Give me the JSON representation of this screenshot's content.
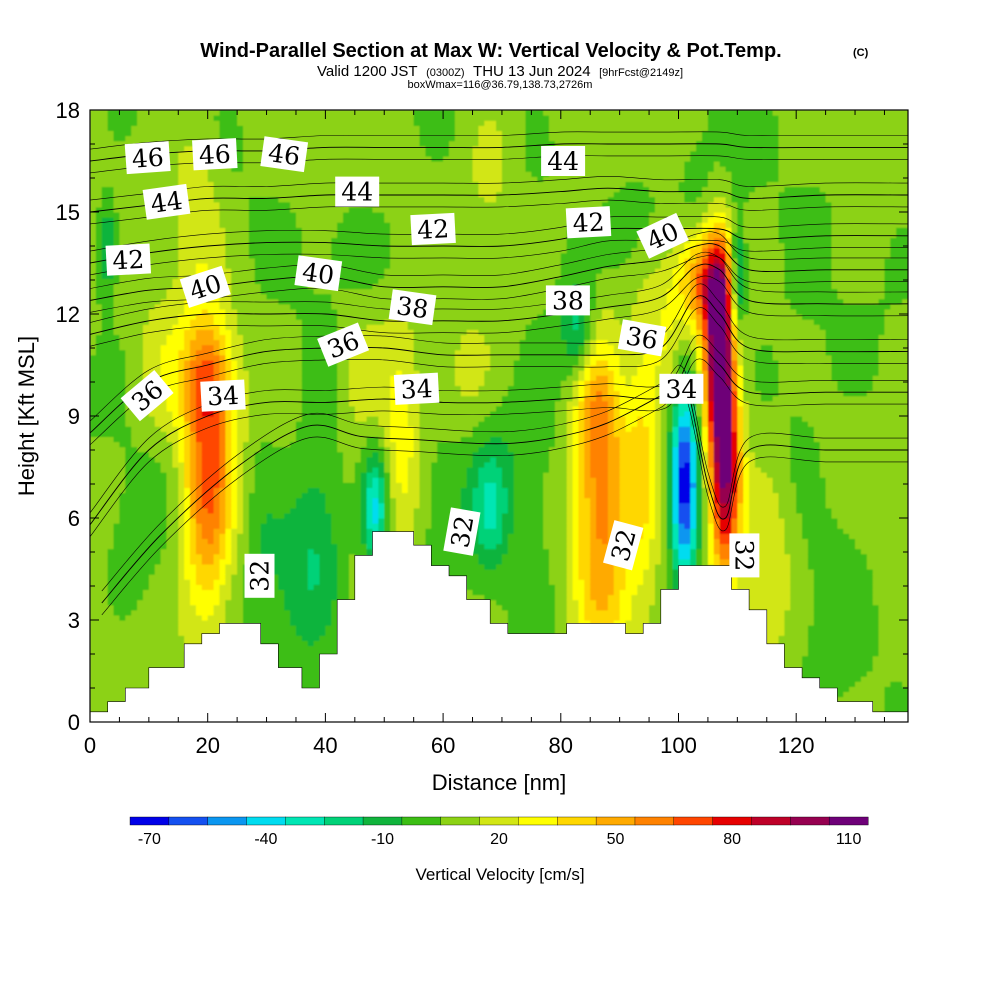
{
  "title": {
    "main": "Wind-Parallel Section at Max W: Vertical Velocity & Pot.Temp.",
    "copyright": "(C)",
    "valid_prefix": "Valid 1200 JST",
    "valid_z": "(0300Z)",
    "valid_date": "THU 13 Jun 2024",
    "forecast": "[9hrFcst@2149z]",
    "box": "boxWmax=116@36.79,138.73,2726m"
  },
  "colors": {
    "scale": [
      "#0000e8",
      "#1450f0",
      "#0a96f0",
      "#00dcf0",
      "#00e6b4",
      "#00d278",
      "#10b43c",
      "#3cbe14",
      "#8cd214",
      "#d2e614",
      "#ffff00",
      "#ffd700",
      "#ffaa00",
      "#ff8200",
      "#ff4600",
      "#e60000",
      "#be0028",
      "#960050",
      "#6e0078"
    ],
    "terrain": "#ffffff",
    "contour": "#000000"
  },
  "chart_data": {
    "type": "heatmap",
    "title": "Wind-Parallel Section at Max W: Vertical Velocity & Pot.Temp.",
    "xlabel": "Distance [nm]",
    "ylabel": "Height [Kft MSL]",
    "xlim": [
      0,
      139
    ],
    "ylim": [
      0,
      18
    ],
    "xticks": [
      0,
      20,
      40,
      60,
      80,
      100,
      120
    ],
    "yticks": [
      0,
      3,
      6,
      9,
      12,
      15,
      18
    ],
    "colorbar": {
      "title": "Vertical Velocity [cm/s]",
      "tick_labels": [
        "-70",
        "-40",
        "-10",
        "20",
        "50",
        "80",
        "110"
      ],
      "tick_values": [
        -70,
        -40,
        -10,
        20,
        50,
        80,
        110
      ],
      "min": -75,
      "max": 115
    },
    "terrain_profile": [
      [
        0,
        0.3
      ],
      [
        3,
        0.3
      ],
      [
        3,
        0.6
      ],
      [
        6,
        0.6
      ],
      [
        6,
        1.0
      ],
      [
        10,
        1.0
      ],
      [
        10,
        1.6
      ],
      [
        16,
        1.6
      ],
      [
        16,
        2.3
      ],
      [
        19,
        2.3
      ],
      [
        19,
        2.6
      ],
      [
        22,
        2.6
      ],
      [
        22,
        2.9
      ],
      [
        29,
        2.9
      ],
      [
        29,
        2.3
      ],
      [
        32,
        2.3
      ],
      [
        32,
        1.6
      ],
      [
        36,
        1.6
      ],
      [
        36,
        1.0
      ],
      [
        39,
        1.0
      ],
      [
        39,
        2.0
      ],
      [
        42,
        2.0
      ],
      [
        42,
        3.6
      ],
      [
        45,
        3.6
      ],
      [
        45,
        4.9
      ],
      [
        48,
        4.9
      ],
      [
        48,
        5.6
      ],
      [
        55,
        5.6
      ],
      [
        55,
        5.2
      ],
      [
        58,
        5.2
      ],
      [
        58,
        4.6
      ],
      [
        61,
        4.6
      ],
      [
        61,
        4.3
      ],
      [
        64,
        4.3
      ],
      [
        64,
        3.6
      ],
      [
        68,
        3.6
      ],
      [
        68,
        2.9
      ],
      [
        71,
        2.9
      ],
      [
        71,
        2.6
      ],
      [
        81,
        2.6
      ],
      [
        81,
        2.9
      ],
      [
        91,
        2.9
      ],
      [
        91,
        2.6
      ],
      [
        94,
        2.6
      ],
      [
        94,
        2.9
      ],
      [
        97,
        2.9
      ],
      [
        97,
        3.9
      ],
      [
        100,
        3.9
      ],
      [
        100,
        4.6
      ],
      [
        109,
        4.6
      ],
      [
        109,
        3.9
      ],
      [
        112,
        3.9
      ],
      [
        112,
        3.3
      ],
      [
        115,
        3.3
      ],
      [
        115,
        2.3
      ],
      [
        118,
        2.3
      ],
      [
        118,
        1.6
      ],
      [
        121,
        1.6
      ],
      [
        121,
        1.3
      ],
      [
        124,
        1.3
      ],
      [
        124,
        1.0
      ],
      [
        127,
        1.0
      ],
      [
        127,
        0.6
      ],
      [
        133,
        0.6
      ],
      [
        133,
        0.3
      ],
      [
        139,
        0.3
      ]
    ],
    "vertical_velocity_cells": [
      {
        "x": 20,
        "y": 7,
        "sx": 3,
        "sy": 2.8,
        "w": 60
      },
      {
        "x": 20,
        "y": 10.2,
        "sx": 3,
        "sy": 1.2,
        "w": 32
      },
      {
        "x": 8,
        "y": 5.8,
        "sx": 4,
        "sy": 2,
        "w": -6
      },
      {
        "x": 29,
        "y": 5.5,
        "sx": 2,
        "sy": 2.5,
        "w": -8
      },
      {
        "x": 35,
        "y": 4.5,
        "sx": 4,
        "sy": 1.8,
        "w": -18
      },
      {
        "x": 39.5,
        "y": 6,
        "sx": 3,
        "sy": 2.5,
        "w": -15
      },
      {
        "x": 53,
        "y": 8,
        "sx": 2.5,
        "sy": 2.2,
        "w": 30
      },
      {
        "x": 48.5,
        "y": 6.2,
        "sx": 1.5,
        "sy": 1.2,
        "w": -45
      },
      {
        "x": 46,
        "y": 10,
        "sx": 3,
        "sy": 1.5,
        "w": 15
      },
      {
        "x": 62,
        "y": 7.5,
        "sx": 8,
        "sy": 2,
        "w": -10
      },
      {
        "x": 68,
        "y": 6.2,
        "sx": 2,
        "sy": 1.2,
        "w": -25
      },
      {
        "x": 75,
        "y": 8,
        "sx": 6,
        "sy": 2,
        "w": -10
      },
      {
        "x": 87,
        "y": 6,
        "sx": 3.5,
        "sy": 3.5,
        "w": 45
      },
      {
        "x": 86,
        "y": 9,
        "sx": 2.5,
        "sy": 1.5,
        "w": 25
      },
      {
        "x": 94,
        "y": 8,
        "sx": 2,
        "sy": 3,
        "w": 25
      },
      {
        "x": 101,
        "y": 7,
        "sx": 1.6,
        "sy": 2.2,
        "w": -75
      },
      {
        "x": 107,
        "y": 11,
        "sx": 1.8,
        "sy": 2.2,
        "w": 112
      },
      {
        "x": 108,
        "y": 7,
        "sx": 1.8,
        "sy": 2,
        "w": 85
      },
      {
        "x": 104,
        "y": 13,
        "sx": 3,
        "sy": 1,
        "w": 50
      },
      {
        "x": 110,
        "y": 13,
        "sx": 1,
        "sy": 1.2,
        "w": -45
      },
      {
        "x": 98,
        "y": 11,
        "sx": 2.5,
        "sy": 1.5,
        "w": 18
      },
      {
        "x": 93,
        "y": 14.5,
        "sx": 4,
        "sy": 1.2,
        "w": -12
      },
      {
        "x": 105,
        "y": 16,
        "sx": 4,
        "sy": 1.5,
        "w": -10
      },
      {
        "x": 83,
        "y": 11.5,
        "sx": 2,
        "sy": 1,
        "w": -30
      },
      {
        "x": 115,
        "y": 4.5,
        "sx": 3,
        "sy": 2,
        "w": 20
      },
      {
        "x": 127,
        "y": 4,
        "sx": 4,
        "sy": 2,
        "w": -8
      },
      {
        "x": 120,
        "y": 10,
        "sx": 5,
        "sy": 2,
        "w": -8
      },
      {
        "x": 3,
        "y": 14,
        "sx": 1.2,
        "sy": 1,
        "w": -30
      },
      {
        "x": 18,
        "y": 15,
        "sx": 3,
        "sy": 2,
        "w": 15
      },
      {
        "x": 45,
        "y": 14,
        "sx": 4,
        "sy": 1,
        "w": -10
      },
      {
        "x": 68,
        "y": 16,
        "sx": 3,
        "sy": 1.5,
        "w": 12
      },
      {
        "x": 12,
        "y": 10,
        "sx": 3,
        "sy": 1.5,
        "w": 12
      },
      {
        "x": 63,
        "y": 9.5,
        "sx": 4,
        "sy": 1.5,
        "w": 12
      }
    ],
    "theta_contours": [
      {
        "level": "32",
        "pts": [
          [
            2,
            3.5
          ],
          [
            12,
            5.5
          ],
          [
            25,
            7.5
          ],
          [
            37,
            8.7
          ],
          [
            46,
            8.4
          ],
          [
            56,
            8.3
          ],
          [
            65,
            8.2
          ],
          [
            72,
            8.2
          ],
          [
            80,
            8.4
          ],
          [
            88,
            8.8
          ],
          [
            97,
            9.6
          ],
          [
            101,
            10
          ],
          [
            105,
            7
          ],
          [
            108,
            6
          ],
          [
            112,
            8
          ],
          [
            125,
            8
          ],
          [
            139,
            8
          ]
        ]
      },
      {
        "level": "34",
        "pts": [
          [
            0,
            5.8
          ],
          [
            10,
            8
          ],
          [
            20,
            9
          ],
          [
            30,
            9.4
          ],
          [
            40,
            9.4
          ],
          [
            50,
            9.5
          ],
          [
            60,
            9.4
          ],
          [
            70,
            9.4
          ],
          [
            80,
            9.5
          ],
          [
            88,
            9.6
          ],
          [
            98,
            9.6
          ],
          [
            103,
            11
          ],
          [
            107,
            10.5
          ],
          [
            112,
            9.7
          ],
          [
            125,
            9.7
          ],
          [
            139,
            9.7
          ]
        ]
      },
      {
        "level": "36",
        "pts": [
          [
            0,
            8.5
          ],
          [
            10,
            10
          ],
          [
            20,
            10.5
          ],
          [
            30,
            10.9
          ],
          [
            40,
            11
          ],
          [
            50,
            11
          ],
          [
            60,
            10.8
          ],
          [
            70,
            10.8
          ],
          [
            80,
            10.8
          ],
          [
            88,
            10.8
          ],
          [
            97,
            11
          ],
          [
            103,
            12.5
          ],
          [
            107,
            12
          ],
          [
            112,
            11
          ],
          [
            125,
            10.9
          ],
          [
            139,
            10.9
          ]
        ]
      },
      {
        "level": "38",
        "pts": [
          [
            0,
            11.4
          ],
          [
            10,
            11.8
          ],
          [
            20,
            12
          ],
          [
            30,
            12
          ],
          [
            40,
            12
          ],
          [
            50,
            11.8
          ],
          [
            60,
            11.8
          ],
          [
            70,
            11.8
          ],
          [
            80,
            12
          ],
          [
            88,
            12.2
          ],
          [
            97,
            12.5
          ],
          [
            103,
            13.4
          ],
          [
            107,
            13.3
          ],
          [
            112,
            12.4
          ],
          [
            125,
            12.3
          ],
          [
            139,
            12.3
          ]
        ]
      },
      {
        "level": "40",
        "pts": [
          [
            0,
            12.4
          ],
          [
            10,
            12.7
          ],
          [
            20,
            12.8
          ],
          [
            30,
            13
          ],
          [
            40,
            13.1
          ],
          [
            50,
            12.8
          ],
          [
            60,
            12.8
          ],
          [
            70,
            12.8
          ],
          [
            80,
            13.1
          ],
          [
            88,
            13.4
          ],
          [
            97,
            13.6
          ],
          [
            103,
            14
          ],
          [
            107,
            14
          ],
          [
            112,
            13.3
          ],
          [
            125,
            13.3
          ],
          [
            139,
            13.3
          ]
        ]
      },
      {
        "level": "42",
        "pts": [
          [
            0,
            13.5
          ],
          [
            10,
            13.8
          ],
          [
            20,
            14
          ],
          [
            30,
            14.1
          ],
          [
            40,
            14.1
          ],
          [
            50,
            14
          ],
          [
            60,
            14
          ],
          [
            70,
            14
          ],
          [
            80,
            14.2
          ],
          [
            88,
            14.5
          ],
          [
            97,
            14.5
          ],
          [
            107,
            14.5
          ],
          [
            112,
            14.2
          ],
          [
            125,
            14.3
          ],
          [
            139,
            14.3
          ]
        ]
      },
      {
        "level": "44",
        "pts": [
          [
            0,
            15
          ],
          [
            10,
            15.2
          ],
          [
            20,
            15.4
          ],
          [
            30,
            15.4
          ],
          [
            40,
            15.5
          ],
          [
            50,
            15.5
          ],
          [
            60,
            15.5
          ],
          [
            70,
            15.5
          ],
          [
            80,
            15.6
          ],
          [
            88,
            15.7
          ],
          [
            97,
            15.6
          ],
          [
            107,
            15.6
          ],
          [
            112,
            15.4
          ],
          [
            125,
            15.5
          ],
          [
            139,
            15.5
          ]
        ]
      },
      {
        "level": "46",
        "pts": [
          [
            0,
            16.5
          ],
          [
            10,
            16.7
          ],
          [
            20,
            16.8
          ],
          [
            30,
            16.8
          ],
          [
            40,
            16.9
          ],
          [
            50,
            16.9
          ],
          [
            60,
            16.9
          ],
          [
            70,
            16.9
          ],
          [
            80,
            17
          ],
          [
            88,
            17
          ],
          [
            97,
            17
          ],
          [
            107,
            17
          ],
          [
            112,
            16.9
          ],
          [
            125,
            16.9
          ],
          [
            139,
            16.9
          ]
        ]
      }
    ],
    "contour_labels": [
      {
        "text": "46",
        "x": 9.8,
        "y": 16.6,
        "rot": -4
      },
      {
        "text": "46",
        "x": 21.2,
        "y": 16.7,
        "rot": -3
      },
      {
        "text": "46",
        "x": 33,
        "y": 16.7,
        "rot": 8
      },
      {
        "text": "44",
        "x": 13,
        "y": 15.3,
        "rot": -8
      },
      {
        "text": "44",
        "x": 45.4,
        "y": 15.6,
        "rot": 0
      },
      {
        "text": "44",
        "x": 80.4,
        "y": 16.5,
        "rot": 0
      },
      {
        "text": "42",
        "x": 6.5,
        "y": 13.6,
        "rot": -3
      },
      {
        "text": "42",
        "x": 58.3,
        "y": 14.5,
        "rot": -3
      },
      {
        "text": "42",
        "x": 84.7,
        "y": 14.7,
        "rot": -3
      },
      {
        "text": "40",
        "x": 19.6,
        "y": 12.8,
        "rot": -18
      },
      {
        "text": "40",
        "x": 38.8,
        "y": 13.2,
        "rot": 8
      },
      {
        "text": "40",
        "x": 97.3,
        "y": 14.3,
        "rot": -25
      },
      {
        "text": "38",
        "x": 54.8,
        "y": 12.2,
        "rot": 8
      },
      {
        "text": "38",
        "x": 81.2,
        "y": 12.4,
        "rot": 0
      },
      {
        "text": "36",
        "x": 43,
        "y": 11.1,
        "rot": -22
      },
      {
        "text": "36",
        "x": 93.8,
        "y": 11.3,
        "rot": 10
      },
      {
        "text": "36",
        "x": 9.7,
        "y": 9.6,
        "rot": -40
      },
      {
        "text": "34",
        "x": 22.6,
        "y": 9.6,
        "rot": -3
      },
      {
        "text": "34",
        "x": 55.5,
        "y": 9.8,
        "rot": -3
      },
      {
        "text": "34",
        "x": 100.5,
        "y": 9.8,
        "rot": 0
      },
      {
        "text": "32",
        "x": 28.8,
        "y": 4.3,
        "rot": -90
      },
      {
        "text": "32",
        "x": 63.2,
        "y": 5.6,
        "rot": -80
      },
      {
        "text": "32",
        "x": 90.6,
        "y": 5.2,
        "rot": -75
      },
      {
        "text": "32",
        "x": 111.2,
        "y": 4.9,
        "rot": 90
      }
    ]
  }
}
